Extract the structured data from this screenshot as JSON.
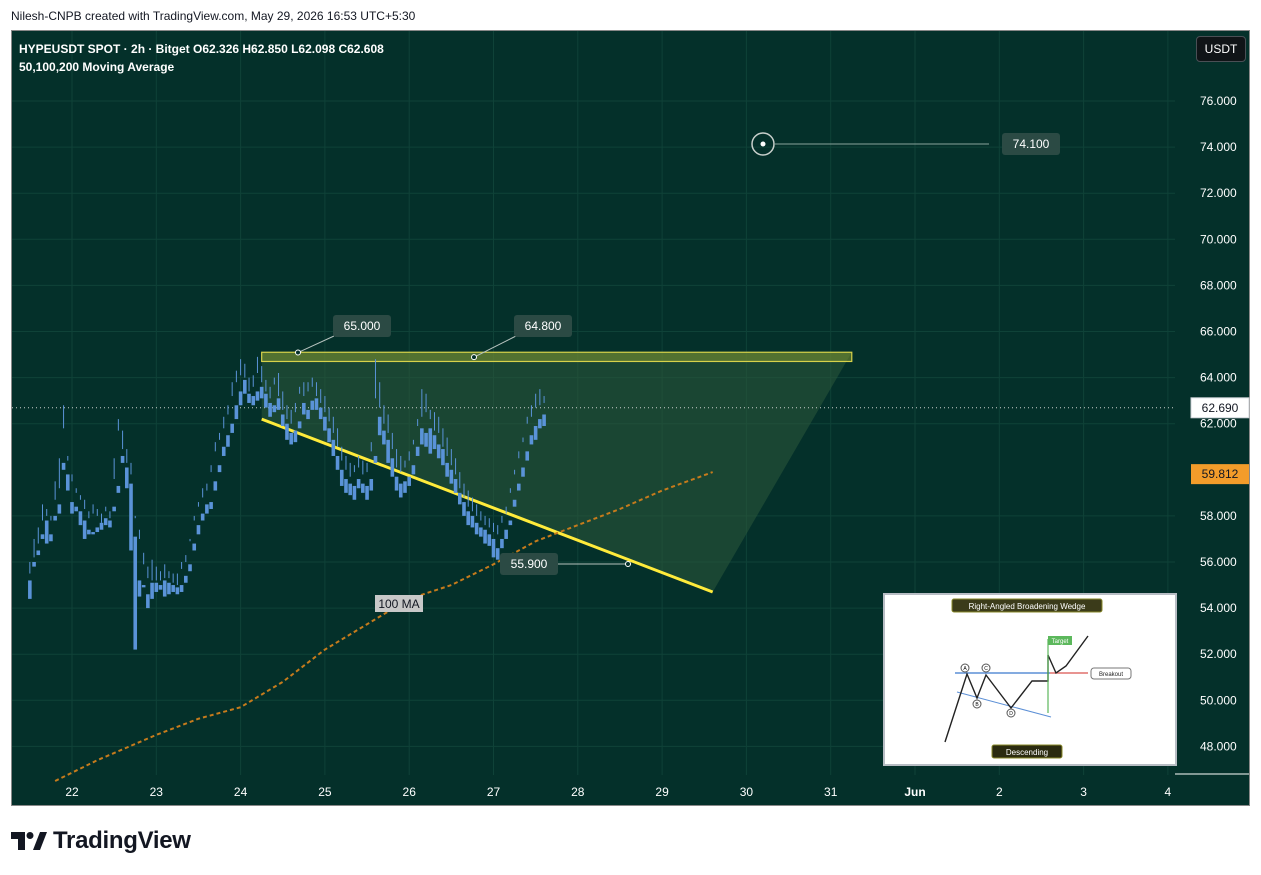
{
  "header": {
    "credit": "Nilesh-CNPB created with TradingView.com, May 29, 2026 16:53 UTC+5:30"
  },
  "legend": {
    "symbol_line": "HYPEUSDT SPOT · 2h · Bitget  O62.326  H62.850  L62.098  C62.608",
    "indicator_line": "50,100,200 Moving Average"
  },
  "currency_button": "USDT",
  "brand": {
    "name": "TradingView"
  },
  "colors": {
    "background": "#04302a",
    "bull_candle": "#f3efdc",
    "bear_candle": "#5a93d8",
    "pattern_line": "#ffeb3b",
    "ma_line": "#c67b1c",
    "price_tag": "#f39c2a"
  },
  "chart_data": {
    "type": "candlestick",
    "ylim": [
      46.5,
      77.5
    ],
    "y_ticks": [
      "76.000",
      "74.000",
      "72.000",
      "70.000",
      "68.000",
      "66.000",
      "64.000",
      "62.000",
      "58.000",
      "56.000",
      "54.000",
      "52.000",
      "50.000",
      "48.000"
    ],
    "x_ticks": [
      "22",
      "23",
      "24",
      "25",
      "26",
      "27",
      "28",
      "29",
      "30",
      "31",
      "Jun",
      "2",
      "3",
      "4"
    ],
    "last_price": "62.690",
    "ma_value": "59.812",
    "ma_label": "100 MA",
    "annotations": [
      {
        "label": "65.000",
        "value": 65.0
      },
      {
        "label": "64.800",
        "value": 64.8
      },
      {
        "label": "55.900",
        "value": 55.9
      },
      {
        "label": "74.100",
        "value": 74.1
      }
    ],
    "resistance_band": [
      64.7,
      65.1
    ],
    "support_line": {
      "from": {
        "day": 24.25,
        "price": 62.2
      },
      "to": {
        "day": 29.6,
        "price": 54.7
      }
    },
    "ma_points": [
      [
        21.8,
        46.5
      ],
      [
        22.3,
        47.4
      ],
      [
        23.0,
        48.5
      ],
      [
        23.5,
        49.2
      ],
      [
        24.0,
        49.7
      ],
      [
        24.5,
        50.8
      ],
      [
        25.0,
        52.2
      ],
      [
        25.5,
        53.3
      ],
      [
        26.0,
        54.4
      ],
      [
        26.5,
        55.0
      ],
      [
        27.0,
        55.9
      ],
      [
        27.5,
        56.9
      ],
      [
        28.0,
        57.6
      ],
      [
        28.5,
        58.3
      ],
      [
        29.0,
        59.1
      ],
      [
        29.6,
        59.9
      ]
    ],
    "candles": [
      [
        21.5,
        55.2,
        56.0,
        55.5,
        54.4
      ],
      [
        21.55,
        56.0,
        57.0,
        56.2,
        55.8
      ],
      [
        21.6,
        56.5,
        57.5,
        56.8,
        56.3
      ],
      [
        21.65,
        57.2,
        58.5,
        57.8,
        57.0
      ],
      [
        21.7,
        57.8,
        58.3,
        58.0,
        56.8
      ],
      [
        21.75,
        57.2,
        58.0,
        57.8,
        56.9
      ],
      [
        21.8,
        58.0,
        59.5,
        58.7,
        57.8
      ],
      [
        21.85,
        58.5,
        60.5,
        59.2,
        58.1
      ],
      [
        21.9,
        60.3,
        62.8,
        61.8,
        60.0
      ],
      [
        21.95,
        59.8,
        60.6,
        60.4,
        59.1
      ],
      [
        22.0,
        58.6,
        59.8,
        59.5,
        58.1
      ],
      [
        22.05,
        58.4,
        59.2,
        59.0,
        58.2
      ],
      [
        22.1,
        58.2,
        58.9,
        58.7,
        57.6
      ],
      [
        22.15,
        57.8,
        58.7,
        58.3,
        57.0
      ],
      [
        22.2,
        57.4,
        58.2,
        57.9,
        57.2
      ],
      [
        22.25,
        57.3,
        58.5,
        58.1,
        57.2
      ],
      [
        22.3,
        57.5,
        58.3,
        58.0,
        57.3
      ],
      [
        22.35,
        57.7,
        58.1,
        57.7,
        57.4
      ],
      [
        22.4,
        57.9,
        58.4,
        58.2,
        57.6
      ],
      [
        22.45,
        57.8,
        58.2,
        57.9,
        57.5
      ],
      [
        22.5,
        58.4,
        60.5,
        59.6,
        58.2
      ],
      [
        22.55,
        59.3,
        62.2,
        61.7,
        59.0
      ],
      [
        22.6,
        60.6,
        61.7,
        60.9,
        60.3
      ],
      [
        22.65,
        60.1,
        60.9,
        60.3,
        59.2
      ],
      [
        22.7,
        59.4,
        60.3,
        59.8,
        56.5
      ],
      [
        22.75,
        57.1,
        58.0,
        57.9,
        52.2
      ],
      [
        22.8,
        55.2,
        57.4,
        57.0,
        54.5
      ],
      [
        22.85,
        55.0,
        56.4,
        55.9,
        54.9
      ],
      [
        22.9,
        54.6,
        55.8,
        55.3,
        54.0
      ],
      [
        22.95,
        55.1,
        56.1,
        55.2,
        54.4
      ],
      [
        23.0,
        55.1,
        55.8,
        55.2,
        54.7
      ],
      [
        23.05,
        55.0,
        55.6,
        55.2,
        54.8
      ],
      [
        23.1,
        55.2,
        55.9,
        55.3,
        54.5
      ],
      [
        23.15,
        55.1,
        55.6,
        55.3,
        54.6
      ],
      [
        23.2,
        55.0,
        55.5,
        55.1,
        54.7
      ],
      [
        23.25,
        54.9,
        55.5,
        55.0,
        54.6
      ],
      [
        23.3,
        55.0,
        56.0,
        55.7,
        54.7
      ],
      [
        23.35,
        55.4,
        56.3,
        56.0,
        55.1
      ],
      [
        23.4,
        55.9,
        57.0,
        56.9,
        55.6
      ],
      [
        23.45,
        56.8,
        58.0,
        57.8,
        56.5
      ],
      [
        23.5,
        57.6,
        58.6,
        58.4,
        57.2
      ],
      [
        23.55,
        58.1,
        59.2,
        58.8,
        57.8
      ],
      [
        23.6,
        58.5,
        59.4,
        59.1,
        58.1
      ],
      [
        23.65,
        58.6,
        60.2,
        59.9,
        58.3
      ],
      [
        23.7,
        59.5,
        61.2,
        60.8,
        59.1
      ],
      [
        23.75,
        60.2,
        61.6,
        61.3,
        59.9
      ],
      [
        23.8,
        61.0,
        62.3,
        61.8,
        60.6
      ],
      [
        23.85,
        61.5,
        62.8,
        62.4,
        61.0
      ],
      [
        23.9,
        62.0,
        63.8,
        63.2,
        61.6
      ],
      [
        23.95,
        62.8,
        64.3,
        63.8,
        62.2
      ],
      [
        24.0,
        63.4,
        64.8,
        64.1,
        62.8
      ],
      [
        24.05,
        63.9,
        64.6,
        64.0,
        63.3
      ],
      [
        24.1,
        63.3,
        64.0,
        63.4,
        62.9
      ],
      [
        24.15,
        63.2,
        64.1,
        63.6,
        62.8
      ],
      [
        24.2,
        63.4,
        64.9,
        64.2,
        63.0
      ],
      [
        24.25,
        63.6,
        64.5,
        63.8,
        63.1
      ],
      [
        24.3,
        63.3,
        63.9,
        63.4,
        62.7
      ],
      [
        24.35,
        62.9,
        63.6,
        63.1,
        62.3
      ],
      [
        24.4,
        62.8,
        64.0,
        63.7,
        62.5
      ],
      [
        24.45,
        63.1,
        64.2,
        63.2,
        62.6
      ],
      [
        24.5,
        62.4,
        63.4,
        62.6,
        61.9
      ],
      [
        24.55,
        62.0,
        62.8,
        62.2,
        61.3
      ],
      [
        24.6,
        61.6,
        62.6,
        62.0,
        61.1
      ],
      [
        24.65,
        61.7,
        62.9,
        62.5,
        61.2
      ],
      [
        24.7,
        62.1,
        63.6,
        63.3,
        61.8
      ],
      [
        24.75,
        62.9,
        63.8,
        63.2,
        62.4
      ],
      [
        24.8,
        62.6,
        63.8,
        63.4,
        62.2
      ],
      [
        24.85,
        63.0,
        64.0,
        63.6,
        62.6
      ],
      [
        24.9,
        63.1,
        63.8,
        63.2,
        62.6
      ],
      [
        24.95,
        62.7,
        63.5,
        62.9,
        62.2
      ],
      [
        25.0,
        62.3,
        63.2,
        62.5,
        61.7
      ],
      [
        25.05,
        61.8,
        62.7,
        62.1,
        61.2
      ],
      [
        25.1,
        61.3,
        62.3,
        61.6,
        60.6
      ],
      [
        25.15,
        60.6,
        61.8,
        61.0,
        60.0
      ],
      [
        25.2,
        60.0,
        61.0,
        60.4,
        59.3
      ],
      [
        25.25,
        59.6,
        60.6,
        60.0,
        59.0
      ],
      [
        25.3,
        59.4,
        60.3,
        59.7,
        58.9
      ],
      [
        25.35,
        59.3,
        60.2,
        59.9,
        58.7
      ],
      [
        25.4,
        59.6,
        60.6,
        60.1,
        59.2
      ],
      [
        25.45,
        59.4,
        60.4,
        59.8,
        59.0
      ],
      [
        25.5,
        59.3,
        60.3,
        59.9,
        58.7
      ],
      [
        25.55,
        59.6,
        61.2,
        60.8,
        59.1
      ],
      [
        25.6,
        60.6,
        64.8,
        63.1,
        60.3
      ],
      [
        25.65,
        62.3,
        63.8,
        62.7,
        61.5
      ],
      [
        25.7,
        61.7,
        62.8,
        62.0,
        61.1
      ],
      [
        25.75,
        61.3,
        62.4,
        61.6,
        60.3
      ],
      [
        25.8,
        60.5,
        61.6,
        60.9,
        59.7
      ],
      [
        25.85,
        59.7,
        60.9,
        60.1,
        59.1
      ],
      [
        25.9,
        59.4,
        60.6,
        59.9,
        58.8
      ],
      [
        25.95,
        59.5,
        60.4,
        60.1,
        59.0
      ],
      [
        26.0,
        59.7,
        60.8,
        60.4,
        59.3
      ],
      [
        26.05,
        60.2,
        61.3,
        61.1,
        59.8
      ],
      [
        26.1,
        61.0,
        62.2,
        61.9,
        60.6
      ],
      [
        26.15,
        61.8,
        63.5,
        62.3,
        61.1
      ],
      [
        26.2,
        61.6,
        63.3,
        62.5,
        61.0
      ],
      [
        26.25,
        61.8,
        62.6,
        62.2,
        60.7
      ],
      [
        26.3,
        61.5,
        62.5,
        61.7,
        60.9
      ],
      [
        26.35,
        61.1,
        62.3,
        61.6,
        60.5
      ],
      [
        26.4,
        60.9,
        61.8,
        61.0,
        60.2
      ],
      [
        26.45,
        60.3,
        61.4,
        60.6,
        59.7
      ],
      [
        26.5,
        60.0,
        60.9,
        60.2,
        59.4
      ],
      [
        26.55,
        59.6,
        60.5,
        59.8,
        59.0
      ],
      [
        26.6,
        59.0,
        59.9,
        59.2,
        58.5
      ],
      [
        26.65,
        58.6,
        59.4,
        58.8,
        58.0
      ],
      [
        26.7,
        58.2,
        59.1,
        58.4,
        57.6
      ],
      [
        26.75,
        58.0,
        58.8,
        58.2,
        57.5
      ],
      [
        26.8,
        57.7,
        58.5,
        58.0,
        57.2
      ],
      [
        26.85,
        57.5,
        58.2,
        57.8,
        57.1
      ],
      [
        26.9,
        57.4,
        58.0,
        57.6,
        56.8
      ],
      [
        26.95,
        57.2,
        57.9,
        57.5,
        56.7
      ],
      [
        27.0,
        57.0,
        57.7,
        57.3,
        56.2
      ],
      [
        27.05,
        56.6,
        57.6,
        57.2,
        56.1
      ],
      [
        27.1,
        57.0,
        58.0,
        57.7,
        56.6
      ],
      [
        27.15,
        57.4,
        58.4,
        58.1,
        57.0
      ],
      [
        27.2,
        57.8,
        59.2,
        59.0,
        57.6
      ],
      [
        27.25,
        58.7,
        60.0,
        59.8,
        58.4
      ],
      [
        27.3,
        59.4,
        60.8,
        60.5,
        59.1
      ],
      [
        27.35,
        60.1,
        61.4,
        61.2,
        59.7
      ],
      [
        27.4,
        60.8,
        62.3,
        62.0,
        60.4
      ],
      [
        27.45,
        61.5,
        62.8,
        62.3,
        61.1
      ],
      [
        27.5,
        61.9,
        63.3,
        62.7,
        61.3
      ],
      [
        27.55,
        62.2,
        63.5,
        62.8,
        61.8
      ],
      [
        27.6,
        62.4,
        63.2,
        62.9,
        61.9
      ]
    ]
  }
}
